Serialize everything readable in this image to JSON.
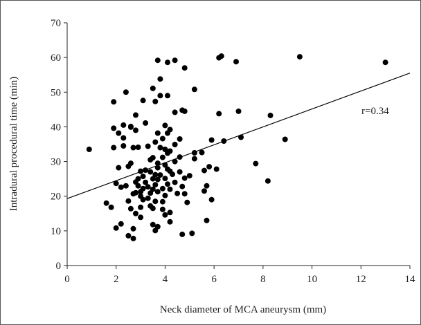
{
  "chart_data": {
    "type": "scatter",
    "xlabel": "Neck diameter of MCA aneurysm (mm)",
    "ylabel": "Intradural procedural time (min)",
    "xlim": [
      0,
      14
    ],
    "ylim": [
      0,
      70
    ],
    "x_ticks": [
      0,
      2,
      4,
      6,
      8,
      10,
      12,
      14
    ],
    "y_ticks": [
      0,
      10,
      20,
      30,
      40,
      50,
      60,
      70
    ],
    "grid": false,
    "legend": "none",
    "marker_color": "#000000",
    "annotation": "r=0.34",
    "trendline": {
      "x": [
        0,
        14
      ],
      "y": [
        19.3,
        55.5
      ]
    },
    "points": [
      [
        0.9,
        33.5
      ],
      [
        1.6,
        18.0
      ],
      [
        1.8,
        16.8
      ],
      [
        1.9,
        47.2
      ],
      [
        1.9,
        39.6
      ],
      [
        1.9,
        34.0
      ],
      [
        2.0,
        23.7
      ],
      [
        2.0,
        10.8
      ],
      [
        2.1,
        28.2
      ],
      [
        2.1,
        38.2
      ],
      [
        2.2,
        22.6
      ],
      [
        2.2,
        12.0
      ],
      [
        2.3,
        40.5
      ],
      [
        2.3,
        34.5
      ],
      [
        2.3,
        36.8
      ],
      [
        2.4,
        50.0
      ],
      [
        2.4,
        23.0
      ],
      [
        2.5,
        28.6
      ],
      [
        2.5,
        18.6
      ],
      [
        2.5,
        8.6
      ],
      [
        2.6,
        39.9
      ],
      [
        2.6,
        40.1
      ],
      [
        2.6,
        29.5
      ],
      [
        2.6,
        16.4
      ],
      [
        2.7,
        20.7
      ],
      [
        2.7,
        34.0
      ],
      [
        2.7,
        10.6
      ],
      [
        2.7,
        7.8
      ],
      [
        2.8,
        39.0
      ],
      [
        2.8,
        43.4
      ],
      [
        2.8,
        21.0
      ],
      [
        2.8,
        24.1
      ],
      [
        2.8,
        15.0
      ],
      [
        2.9,
        23.0
      ],
      [
        2.9,
        25.0
      ],
      [
        2.9,
        34.1
      ],
      [
        3.0,
        20.0
      ],
      [
        3.0,
        21.3
      ],
      [
        3.0,
        27.2
      ],
      [
        3.0,
        16.8
      ],
      [
        3.0,
        13.9
      ],
      [
        3.1,
        47.6
      ],
      [
        3.1,
        22.2
      ],
      [
        3.1,
        19.0
      ],
      [
        3.1,
        25.7
      ],
      [
        3.2,
        27.5
      ],
      [
        3.2,
        24.0
      ],
      [
        3.2,
        41.1
      ],
      [
        3.3,
        34.4
      ],
      [
        3.3,
        22.7
      ],
      [
        3.3,
        19.4
      ],
      [
        3.4,
        30.5
      ],
      [
        3.4,
        20.9
      ],
      [
        3.4,
        17.2
      ],
      [
        3.4,
        27.0
      ],
      [
        3.5,
        51.1
      ],
      [
        3.5,
        25.0
      ],
      [
        3.5,
        22.0
      ],
      [
        3.5,
        11.8
      ],
      [
        3.5,
        16.5
      ],
      [
        3.5,
        31.1
      ],
      [
        3.6,
        47.3
      ],
      [
        3.6,
        35.6
      ],
      [
        3.6,
        26.2
      ],
      [
        3.6,
        23.3
      ],
      [
        3.6,
        18.5
      ],
      [
        3.6,
        10.1
      ],
      [
        3.7,
        59.2
      ],
      [
        3.7,
        38.2
      ],
      [
        3.7,
        28.2
      ],
      [
        3.7,
        24.8
      ],
      [
        3.7,
        21.3
      ],
      [
        3.7,
        29.5
      ],
      [
        3.7,
        11.2
      ],
      [
        3.8,
        53.8
      ],
      [
        3.8,
        49.0
      ],
      [
        3.8,
        34.0
      ],
      [
        3.8,
        26.1
      ],
      [
        3.9,
        36.6
      ],
      [
        3.9,
        31.2
      ],
      [
        3.9,
        22.2
      ],
      [
        3.9,
        18.4
      ],
      [
        3.9,
        16.2
      ],
      [
        4.0,
        40.4
      ],
      [
        4.0,
        33.5
      ],
      [
        4.0,
        29.0
      ],
      [
        4.0,
        25.1
      ],
      [
        4.0,
        20.2
      ],
      [
        4.0,
        14.6
      ],
      [
        4.1,
        58.6
      ],
      [
        4.1,
        49.0
      ],
      [
        4.1,
        38.2
      ],
      [
        4.1,
        32.4
      ],
      [
        4.1,
        27.8
      ],
      [
        4.1,
        23.5
      ],
      [
        4.2,
        39.2
      ],
      [
        4.2,
        33.0
      ],
      [
        4.2,
        27.2
      ],
      [
        4.2,
        22.0
      ],
      [
        4.2,
        15.3
      ],
      [
        4.2,
        12.6
      ],
      [
        4.3,
        26.3
      ],
      [
        4.4,
        59.2
      ],
      [
        4.4,
        44.2
      ],
      [
        4.4,
        34.9
      ],
      [
        4.4,
        30.0
      ],
      [
        4.4,
        24.0
      ],
      [
        4.5,
        20.8
      ],
      [
        4.6,
        36.5
      ],
      [
        4.6,
        31.3
      ],
      [
        4.6,
        27.0
      ],
      [
        4.7,
        44.8
      ],
      [
        4.7,
        22.8
      ],
      [
        4.7,
        9.0
      ],
      [
        4.8,
        57.0
      ],
      [
        4.8,
        44.5
      ],
      [
        4.8,
        25.2
      ],
      [
        4.8,
        20.7
      ],
      [
        4.9,
        18.2
      ],
      [
        5.0,
        25.9
      ],
      [
        5.1,
        9.3
      ],
      [
        5.2,
        50.8
      ],
      [
        5.2,
        32.5
      ],
      [
        5.2,
        30.8
      ],
      [
        5.5,
        32.6
      ],
      [
        5.6,
        27.4
      ],
      [
        5.6,
        21.5
      ],
      [
        5.7,
        13.0
      ],
      [
        5.7,
        23.0
      ],
      [
        5.8,
        28.5
      ],
      [
        5.9,
        19.0
      ],
      [
        5.9,
        36.2
      ],
      [
        6.1,
        27.8
      ],
      [
        6.2,
        43.8
      ],
      [
        6.2,
        59.9
      ],
      [
        6.3,
        60.4
      ],
      [
        6.4,
        35.9
      ],
      [
        6.9,
        58.8
      ],
      [
        7.0,
        44.5
      ],
      [
        7.1,
        37.0
      ],
      [
        7.7,
        29.4
      ],
      [
        8.2,
        24.4
      ],
      [
        8.3,
        43.3
      ],
      [
        8.9,
        36.4
      ],
      [
        9.5,
        60.2
      ],
      [
        13.0,
        58.6
      ]
    ]
  }
}
